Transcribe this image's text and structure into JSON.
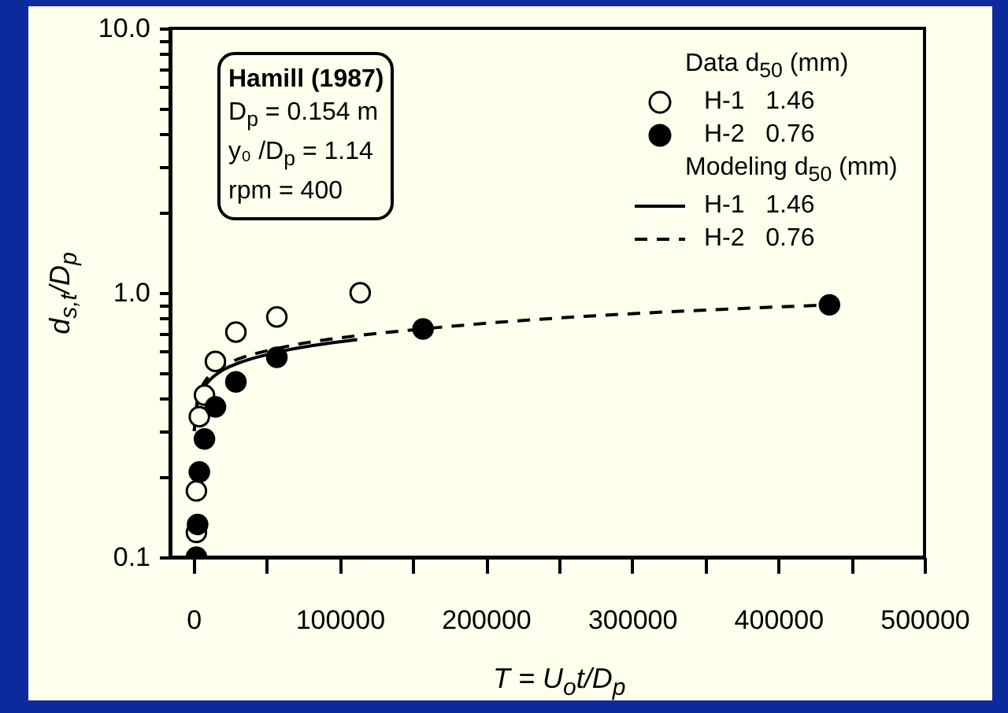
{
  "chart_data": {
    "type": "scatter",
    "xlabel": "T = U$_{o}$t/D$_{p}$",
    "ylabel": "d$_{s,t}$/D$_{p}$",
    "legend_title": "Data d$_{50}$ (mm)",
    "annotations": [
      "Hamill (1987)",
      "D$_{p}$ = 0.154 m",
      "y₀ /D$_{p}$ = 1.14",
      "rpm = 400",
      "Modeling d$_{50}$ (mm)"
    ],
    "log": "y",
    "grid": false,
    "legend": "top right",
    "xlim": [
      -16000,
      500000
    ],
    "xticks": [
      0,
      {
        "value": 50000,
        "label": null
      },
      100000,
      {
        "value": 150000,
        "label": null
      },
      200000,
      {
        "value": 250000,
        "label": null
      },
      300000,
      {
        "value": 350000,
        "label": null
      },
      400000,
      {
        "value": 450000,
        "label": null
      },
      500000
    ],
    "ylim": [
      0.1,
      10
    ],
    "yticks": [
      0.1,
      {
        "value": 0.2,
        "label": null
      },
      {
        "value": 0.3,
        "label": null
      },
      {
        "value": 0.4,
        "label": null
      },
      {
        "value": 0.5,
        "label": null
      },
      {
        "value": 0.6,
        "label": null
      },
      {
        "value": 0.7,
        "label": null
      },
      {
        "value": 0.8,
        "label": null
      },
      {
        "value": 0.9,
        "label": null
      },
      {
        "value": 1,
        "label": "1.0"
      },
      {
        "value": 2,
        "label": null
      },
      {
        "value": 3,
        "label": null
      },
      {
        "value": 4,
        "label": null
      },
      {
        "value": 5,
        "label": null
      },
      {
        "value": 6,
        "label": null
      },
      {
        "value": 7,
        "label": null
      },
      {
        "value": 8,
        "label": null
      },
      {
        "value": 9,
        "label": null
      },
      {
        "value": 10,
        "label": "10.0"
      }
    ],
    "series": [
      {
        "name": "H-1   1.46",
        "marker": "circle",
        "color": "#ffffee",
        "x": [
          2000,
          2000,
          4000,
          7500,
          15000,
          29000,
          57000,
          114000
        ],
        "values": [
          0.124,
          0.178,
          0.34,
          0.41,
          0.55,
          0.71,
          0.81,
          1.0
        ]
      },
      {
        "name": "H-2   0.76",
        "marker": "circle",
        "color": "#000000",
        "x": [
          2000,
          2800,
          4000,
          7500,
          15000,
          29000,
          57000,
          157000,
          435000
        ],
        "values": [
          0.1,
          0.133,
          0.21,
          0.28,
          0.37,
          0.46,
          0.57,
          0.73,
          0.9
        ]
      },
      {
        "name": "H-1   1.46",
        "type": "line",
        "marker": "none",
        "line_style": "solid",
        "color": "#000000",
        "x": [
          500,
          2000,
          5000,
          10000,
          20000,
          30000,
          60000,
          112000
        ],
        "values": [
          0.3,
          0.36,
          0.42,
          0.46,
          0.51,
          0.54,
          0.6,
          0.665
        ]
      },
      {
        "name": "H-2   0.76",
        "type": "line",
        "marker": "none",
        "line_style": "dashed",
        "color": "#000000",
        "x": [
          500,
          2000,
          5000,
          10000,
          20000,
          30000,
          60000,
          114000,
          157000,
          435000
        ],
        "values": [
          0.3,
          0.37,
          0.43,
          0.48,
          0.53,
          0.56,
          0.62,
          0.69,
          0.73,
          0.9
        ]
      }
    ]
  }
}
